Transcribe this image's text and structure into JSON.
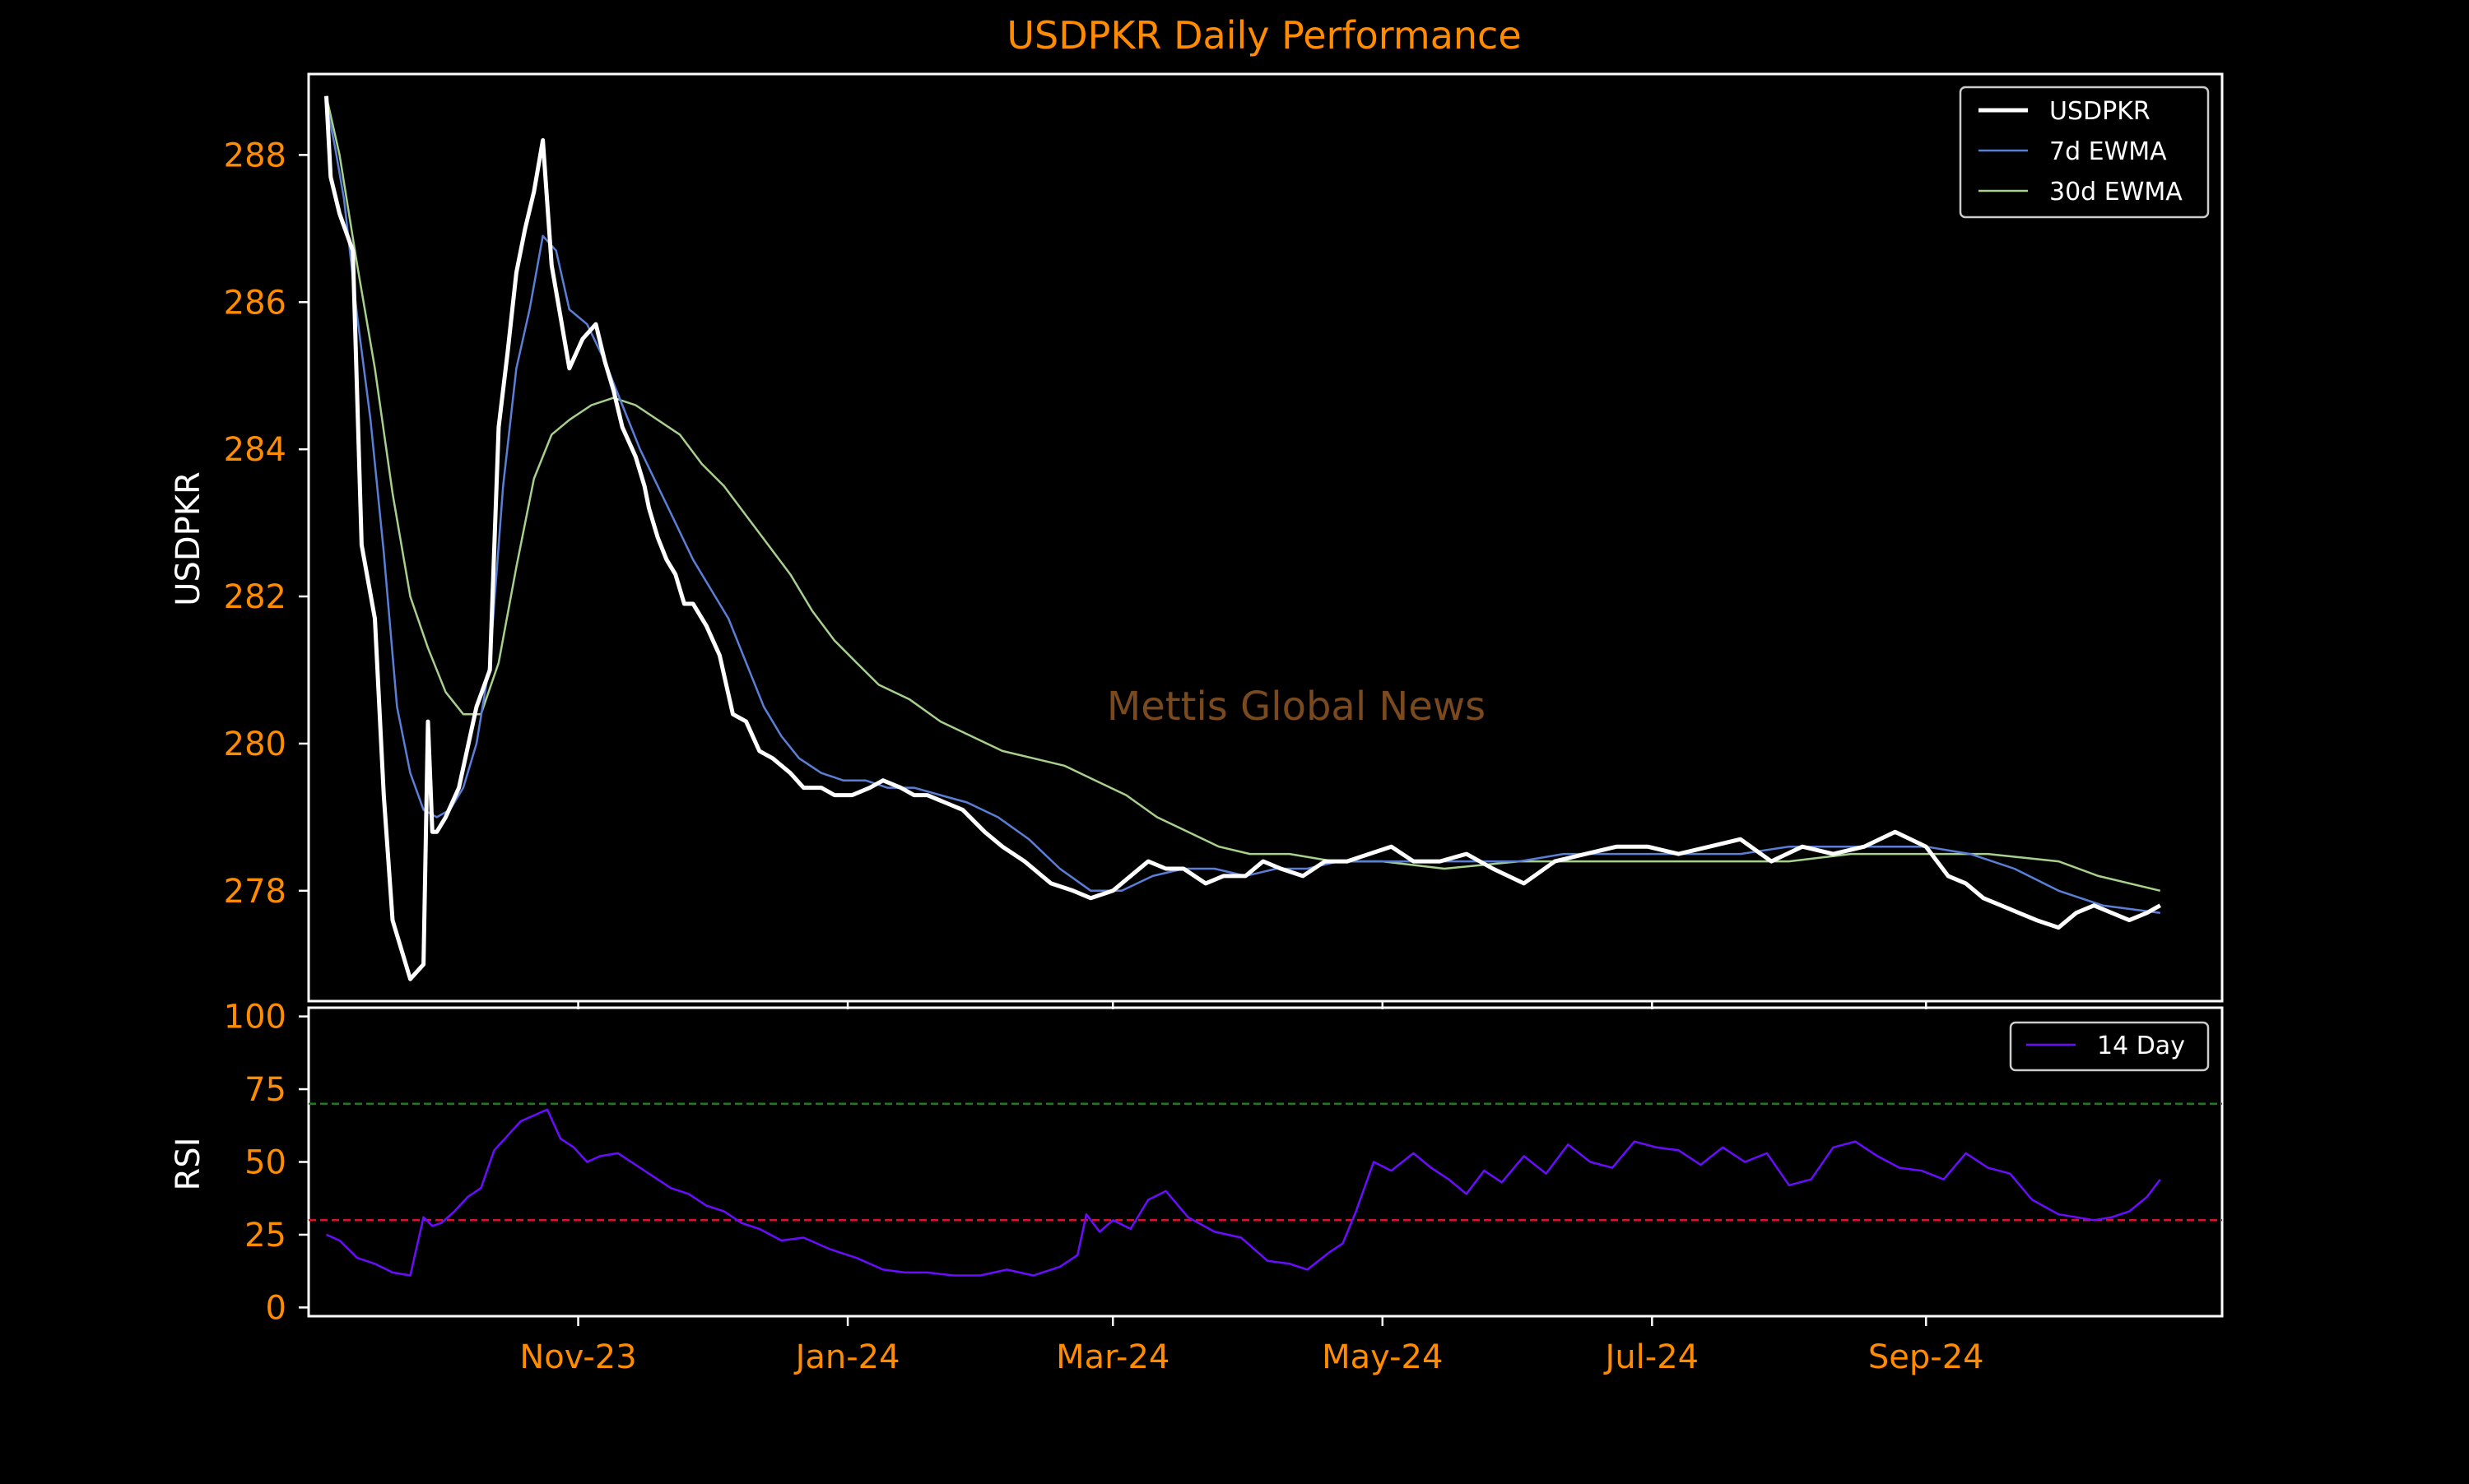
{
  "colors": {
    "background": "#000000",
    "frame": "#ffffff",
    "title": "#ff8c00",
    "ticklabel": "#ff8c00",
    "axislabel": "#ffffff",
    "watermark": "#7a4a1e",
    "usdpkr": "#ffffff",
    "ewma7": "#5b7fd6",
    "ewma30": "#a8d08d",
    "rsi": "#6a0dff",
    "overbought": "#1f7a1f",
    "oversold": "#e0102a"
  },
  "watermark": "Mettis Global News",
  "chart_data": [
    {
      "type": "line",
      "title": "USDPKR Daily Performance",
      "ylabel": "USDPKR",
      "xlabel": "",
      "ylim": [
        276.5,
        289.1
      ],
      "xlim": [
        "2023-09-01",
        "2024-11-07"
      ],
      "yticks": [
        278,
        280,
        282,
        284,
        286,
        288
      ],
      "grid": false,
      "legend": "top-right",
      "series": [
        {
          "name": "USDPKR",
          "x": [
            "2023-09-05",
            "2023-09-06",
            "2023-09-08",
            "2023-09-11",
            "2023-09-13",
            "2023-09-16",
            "2023-09-18",
            "2023-09-20",
            "2023-09-24",
            "2023-09-27",
            "2023-09-28",
            "2023-09-29",
            "2023-09-30",
            "2023-10-02",
            "2023-10-05",
            "2023-10-09",
            "2023-10-12",
            "2023-10-14",
            "2023-10-16",
            "2023-10-18",
            "2023-10-20",
            "2023-10-22",
            "2023-10-24",
            "2023-10-26",
            "2023-10-28",
            "2023-10-30",
            "2023-11-02",
            "2023-11-05",
            "2023-11-07",
            "2023-11-09",
            "2023-11-11",
            "2023-11-14",
            "2023-11-16",
            "2023-11-17",
            "2023-11-19",
            "2023-11-21",
            "2023-11-23",
            "2023-11-25",
            "2023-11-27",
            "2023-11-30",
            "2023-12-03",
            "2023-12-06",
            "2023-12-09",
            "2023-12-12",
            "2023-12-15",
            "2023-12-19",
            "2023-12-22",
            "2023-12-26",
            "2023-12-29",
            "2024-01-02",
            "2024-01-06",
            "2024-01-09",
            "2024-01-13",
            "2024-01-16",
            "2024-01-19",
            "2024-01-23",
            "2024-01-27",
            "2024-02-01",
            "2024-02-05",
            "2024-02-10",
            "2024-02-16",
            "2024-02-21",
            "2024-02-25",
            "2024-03-01",
            "2024-03-05",
            "2024-03-09",
            "2024-03-13",
            "2024-03-17",
            "2024-03-22",
            "2024-03-26",
            "2024-03-31",
            "2024-04-04",
            "2024-04-08",
            "2024-04-13",
            "2024-04-18",
            "2024-04-23",
            "2024-04-28",
            "2024-05-03",
            "2024-05-08",
            "2024-05-14",
            "2024-05-20",
            "2024-05-26",
            "2024-06-02",
            "2024-06-09",
            "2024-06-16",
            "2024-06-23",
            "2024-06-30",
            "2024-07-07",
            "2024-07-14",
            "2024-07-21",
            "2024-07-28",
            "2024-08-04",
            "2024-08-11",
            "2024-08-18",
            "2024-08-25",
            "2024-09-01",
            "2024-09-06",
            "2024-09-10",
            "2024-09-14",
            "2024-09-18",
            "2024-09-22",
            "2024-09-26",
            "2024-10-01",
            "2024-10-05",
            "2024-10-09",
            "2024-10-13",
            "2024-10-17",
            "2024-10-21",
            "2024-10-24"
          ],
          "values": [
            288.8,
            287.7,
            287.2,
            286.7,
            282.7,
            281.7,
            279.3,
            277.6,
            276.8,
            277.0,
            280.3,
            278.8,
            278.8,
            279.0,
            279.4,
            280.5,
            281.0,
            284.3,
            285.3,
            286.4,
            287.0,
            287.5,
            288.2,
            286.5,
            285.8,
            285.1,
            285.5,
            285.7,
            285.2,
            284.8,
            284.3,
            283.9,
            283.5,
            283.2,
            282.8,
            282.5,
            282.3,
            281.9,
            281.9,
            281.6,
            281.2,
            280.4,
            280.3,
            279.9,
            279.8,
            279.6,
            279.4,
            279.4,
            279.3,
            279.3,
            279.4,
            279.5,
            279.4,
            279.3,
            279.3,
            279.2,
            279.1,
            278.8,
            278.6,
            278.4,
            278.1,
            278.0,
            277.9,
            278.0,
            278.2,
            278.4,
            278.3,
            278.3,
            278.1,
            278.2,
            278.2,
            278.4,
            278.3,
            278.2,
            278.4,
            278.4,
            278.5,
            278.6,
            278.4,
            278.4,
            278.5,
            278.3,
            278.1,
            278.4,
            278.5,
            278.6,
            278.6,
            278.5,
            278.6,
            278.7,
            278.4,
            278.6,
            278.5,
            278.6,
            278.8,
            278.6,
            278.2,
            278.1,
            277.9,
            277.8,
            277.7,
            277.6,
            277.5,
            277.7,
            277.8,
            277.7,
            277.6,
            277.7,
            277.8
          ]
        },
        {
          "name": "7d EWMA",
          "x": [
            "2023-09-05",
            "2023-09-07",
            "2023-09-09",
            "2023-09-12",
            "2023-09-15",
            "2023-09-18",
            "2023-09-21",
            "2023-09-24",
            "2023-09-27",
            "2023-09-30",
            "2023-10-03",
            "2023-10-06",
            "2023-10-09",
            "2023-10-12",
            "2023-10-15",
            "2023-10-18",
            "2023-10-21",
            "2023-10-24",
            "2023-10-27",
            "2023-10-30",
            "2023-11-03",
            "2023-11-07",
            "2023-11-11",
            "2023-11-15",
            "2023-11-19",
            "2023-11-23",
            "2023-11-27",
            "2023-12-01",
            "2023-12-05",
            "2023-12-09",
            "2023-12-13",
            "2023-12-17",
            "2023-12-21",
            "2023-12-26",
            "2023-12-31",
            "2024-01-05",
            "2024-01-10",
            "2024-01-16",
            "2024-01-22",
            "2024-01-28",
            "2024-02-04",
            "2024-02-11",
            "2024-02-18",
            "2024-02-25",
            "2024-03-03",
            "2024-03-10",
            "2024-03-17",
            "2024-03-24",
            "2024-03-31",
            "2024-04-07",
            "2024-04-14",
            "2024-04-21",
            "2024-05-01",
            "2024-05-11",
            "2024-05-21",
            "2024-06-01",
            "2024-06-11",
            "2024-06-21",
            "2024-07-01",
            "2024-07-11",
            "2024-07-21",
            "2024-08-01",
            "2024-08-11",
            "2024-08-21",
            "2024-09-01",
            "2024-09-11",
            "2024-09-21",
            "2024-10-01",
            "2024-10-11",
            "2024-10-24"
          ],
          "values": [
            288.7,
            288.1,
            287.4,
            285.8,
            284.4,
            282.6,
            280.5,
            279.6,
            279.1,
            279.0,
            279.1,
            279.4,
            280.0,
            281.1,
            283.5,
            285.1,
            285.9,
            286.9,
            286.7,
            285.9,
            285.7,
            285.2,
            284.6,
            284.0,
            283.5,
            283.0,
            282.5,
            282.1,
            281.7,
            281.1,
            280.5,
            280.1,
            279.8,
            279.6,
            279.5,
            279.5,
            279.4,
            279.4,
            279.3,
            279.2,
            279.0,
            278.7,
            278.3,
            278.0,
            278.0,
            278.2,
            278.3,
            278.3,
            278.2,
            278.3,
            278.3,
            278.4,
            278.4,
            278.4,
            278.4,
            278.4,
            278.5,
            278.5,
            278.5,
            278.5,
            278.5,
            278.6,
            278.6,
            278.6,
            278.6,
            278.5,
            278.3,
            278.0,
            277.8,
            277.7
          ]
        },
        {
          "name": "30d EWMA",
          "x": [
            "2023-09-05",
            "2023-09-08",
            "2023-09-12",
            "2023-09-16",
            "2023-09-20",
            "2023-09-24",
            "2023-09-28",
            "2023-10-02",
            "2023-10-06",
            "2023-10-10",
            "2023-10-14",
            "2023-10-18",
            "2023-10-22",
            "2023-10-26",
            "2023-10-30",
            "2023-11-04",
            "2023-11-09",
            "2023-11-14",
            "2023-11-19",
            "2023-11-24",
            "2023-11-29",
            "2023-12-04",
            "2023-12-09",
            "2023-12-14",
            "2023-12-19",
            "2023-12-24",
            "2023-12-29",
            "2024-01-03",
            "2024-01-08",
            "2024-01-15",
            "2024-01-22",
            "2024-01-29",
            "2024-02-05",
            "2024-02-12",
            "2024-02-19",
            "2024-02-26",
            "2024-03-04",
            "2024-03-11",
            "2024-03-18",
            "2024-03-25",
            "2024-04-01",
            "2024-04-10",
            "2024-04-20",
            "2024-05-01",
            "2024-05-15",
            "2024-06-01",
            "2024-06-15",
            "2024-07-01",
            "2024-07-15",
            "2024-08-01",
            "2024-08-15",
            "2024-09-01",
            "2024-09-15",
            "2024-10-01",
            "2024-10-10",
            "2024-10-24"
          ],
          "values": [
            288.8,
            288.0,
            286.5,
            285.1,
            283.4,
            282.0,
            281.3,
            280.7,
            280.4,
            280.4,
            281.1,
            282.4,
            283.6,
            284.2,
            284.4,
            284.6,
            284.7,
            284.6,
            284.4,
            284.2,
            283.8,
            283.5,
            283.1,
            282.7,
            282.3,
            281.8,
            281.4,
            281.1,
            280.8,
            280.6,
            280.3,
            280.1,
            279.9,
            279.8,
            279.7,
            279.5,
            279.3,
            279.0,
            278.8,
            278.6,
            278.5,
            278.5,
            278.4,
            278.4,
            278.3,
            278.4,
            278.4,
            278.4,
            278.4,
            278.4,
            278.5,
            278.5,
            278.5,
            278.4,
            278.2,
            278.0
          ]
        }
      ]
    },
    {
      "type": "line",
      "title": "",
      "ylabel": "RSI",
      "xlabel": "",
      "ylim": [
        -3,
        103
      ],
      "xlim": [
        "2023-09-01",
        "2024-11-07"
      ],
      "yticks": [
        0,
        25,
        50,
        75,
        100
      ],
      "xticks": [
        {
          "date": "2023-11-01",
          "label": "Nov-23"
        },
        {
          "date": "2024-01-01",
          "label": "Jan-24"
        },
        {
          "date": "2024-03-01",
          "label": "Mar-24"
        },
        {
          "date": "2024-05-01",
          "label": "May-24"
        },
        {
          "date": "2024-07-01",
          "label": "Jul-24"
        },
        {
          "date": "2024-09-01",
          "label": "Sep-24"
        }
      ],
      "hlines": [
        {
          "y": 70,
          "style": "overbought"
        },
        {
          "y": 30,
          "style": "oversold"
        }
      ],
      "grid": false,
      "legend": "top-right",
      "series": [
        {
          "name": "14 Day",
          "x": [
            "2023-09-05",
            "2023-09-08",
            "2023-09-12",
            "2023-09-16",
            "2023-09-20",
            "2023-09-24",
            "2023-09-27",
            "2023-09-29",
            "2023-10-01",
            "2023-10-04",
            "2023-10-07",
            "2023-10-10",
            "2023-10-13",
            "2023-10-16",
            "2023-10-19",
            "2023-10-22",
            "2023-10-25",
            "2023-10-28",
            "2023-10-31",
            "2023-11-03",
            "2023-11-06",
            "2023-11-10",
            "2023-11-14",
            "2023-11-18",
            "2023-11-22",
            "2023-11-26",
            "2023-11-30",
            "2023-12-04",
            "2023-12-08",
            "2023-12-12",
            "2023-12-17",
            "2023-12-22",
            "2023-12-28",
            "2024-01-03",
            "2024-01-09",
            "2024-01-14",
            "2024-01-19",
            "2024-01-25",
            "2024-01-31",
            "2024-02-06",
            "2024-02-12",
            "2024-02-18",
            "2024-02-22",
            "2024-02-24",
            "2024-02-27",
            "2024-03-01",
            "2024-03-05",
            "2024-03-09",
            "2024-03-13",
            "2024-03-18",
            "2024-03-24",
            "2024-03-30",
            "2024-04-05",
            "2024-04-10",
            "2024-04-14",
            "2024-04-19",
            "2024-04-22",
            "2024-04-25",
            "2024-04-29",
            "2024-05-03",
            "2024-05-08",
            "2024-05-12",
            "2024-05-16",
            "2024-05-20",
            "2024-05-24",
            "2024-05-28",
            "2024-06-02",
            "2024-06-07",
            "2024-06-12",
            "2024-06-17",
            "2024-06-22",
            "2024-06-27",
            "2024-07-02",
            "2024-07-07",
            "2024-07-12",
            "2024-07-17",
            "2024-07-22",
            "2024-07-27",
            "2024-08-01",
            "2024-08-06",
            "2024-08-11",
            "2024-08-16",
            "2024-08-21",
            "2024-08-26",
            "2024-08-31",
            "2024-09-05",
            "2024-09-10",
            "2024-09-15",
            "2024-09-20",
            "2024-09-25",
            "2024-10-01",
            "2024-10-05",
            "2024-10-09",
            "2024-10-13",
            "2024-10-17",
            "2024-10-21",
            "2024-10-24"
          ],
          "values": [
            25,
            23,
            17,
            15,
            12,
            11,
            31,
            28,
            29,
            33,
            38,
            41,
            54,
            59,
            64,
            66,
            68,
            58,
            55,
            50,
            52,
            53,
            49,
            45,
            41,
            39,
            35,
            33,
            29,
            27,
            23,
            24,
            20,
            17,
            13,
            12,
            12,
            11,
            11,
            13,
            11,
            14,
            18,
            32,
            26,
            30,
            27,
            37,
            40,
            31,
            26,
            24,
            16,
            15,
            13,
            19,
            22,
            33,
            50,
            47,
            53,
            48,
            44,
            39,
            47,
            43,
            52,
            46,
            56,
            50,
            48,
            57,
            55,
            54,
            49,
            55,
            50,
            53,
            42,
            44,
            55,
            57,
            52,
            48,
            47,
            44,
            53,
            48,
            46,
            37,
            32,
            31,
            30,
            31,
            33,
            38,
            44
          ]
        }
      ]
    }
  ]
}
